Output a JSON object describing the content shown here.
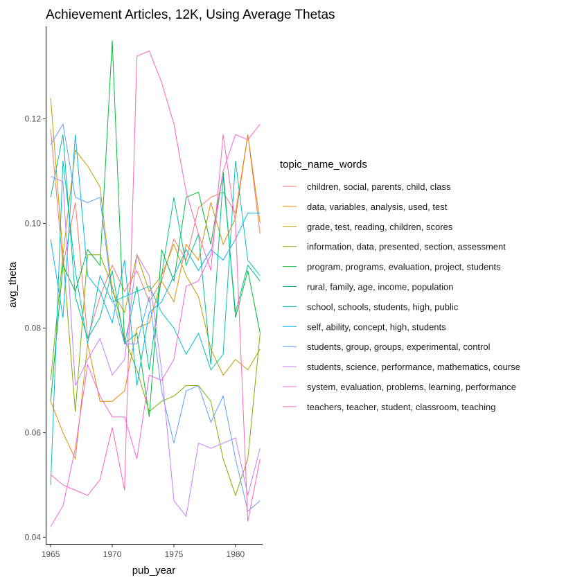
{
  "chart_data": {
    "type": "line",
    "title": "Achievement Articles, 12K, Using Average Thetas",
    "xlabel": "pub_year",
    "ylabel": "avg_theta",
    "xlim": [
      1964.6,
      1982.2
    ],
    "ylim": [
      0.0386,
      0.1377
    ],
    "x_ticks": [
      1965,
      1970,
      1975,
      1980
    ],
    "y_ticks": [
      0.04,
      0.06,
      0.08,
      0.1,
      0.12
    ],
    "y_tick_labels": [
      "0.04",
      "0.06",
      "0.08",
      "0.10",
      "0.12"
    ],
    "grid": false,
    "legend_position": "right",
    "legend_title": "topic_name_words",
    "x": [
      1965,
      1966,
      1967,
      1968,
      1969,
      1970,
      1971,
      1972,
      1973,
      1974,
      1975,
      1976,
      1977,
      1978,
      1979,
      1980,
      1981,
      1982
    ],
    "series": [
      {
        "name": "children, social, parents, child, class",
        "color": "#F8766D",
        "values": [
          0.118,
          0.092,
          0.104,
          0.078,
          0.086,
          0.092,
          0.087,
          0.091,
          0.085,
          0.089,
          0.097,
          0.093,
          0.103,
          0.105,
          0.106,
          0.102,
          0.117,
          0.098
        ]
      },
      {
        "name": "data, variables, analysis, used, test",
        "color": "#DE8C00",
        "values": [
          0.066,
          0.06,
          0.055,
          0.077,
          0.066,
          0.066,
          0.068,
          0.08,
          0.081,
          0.089,
          0.085,
          0.096,
          0.093,
          0.104,
          0.096,
          0.101,
          0.117,
          0.1
        ]
      },
      {
        "name": "grade, test, reading, children, scores",
        "color": "#B79F00",
        "values": [
          0.124,
          0.094,
          0.114,
          0.111,
          0.107,
          0.087,
          0.083,
          0.094,
          0.087,
          0.09,
          0.096,
          0.09,
          0.086,
          0.076,
          0.071,
          0.074,
          0.072,
          0.076
        ]
      },
      {
        "name": "information, data, presented, section, assessment",
        "color": "#7CAE00",
        "values": [
          0.07,
          0.094,
          0.064,
          0.094,
          0.094,
          0.088,
          0.078,
          0.072,
          0.064,
          0.066,
          0.067,
          0.069,
          0.069,
          0.066,
          0.055,
          0.048,
          0.055,
          0.079
        ]
      },
      {
        "name": "program, programs, evaluation, project, students",
        "color": "#00BA38",
        "values": [
          0.066,
          0.092,
          0.087,
          0.095,
          0.092,
          0.135,
          0.077,
          0.079,
          0.063,
          0.095,
          0.089,
          0.105,
          0.106,
          0.096,
          0.11,
          0.082,
          0.091,
          0.079
        ]
      },
      {
        "name": "rural, family, age, income, population",
        "color": "#00C08B",
        "values": [
          0.105,
          0.117,
          0.086,
          0.078,
          0.082,
          0.091,
          0.077,
          0.088,
          0.072,
          0.09,
          0.105,
          0.092,
          0.098,
          0.073,
          0.109,
          0.083,
          0.092,
          0.089
        ]
      },
      {
        "name": "school, schools, students, high, public",
        "color": "#00BFC4",
        "values": [
          0.05,
          0.112,
          0.091,
          0.077,
          0.09,
          0.085,
          0.086,
          0.087,
          0.088,
          0.083,
          0.08,
          0.075,
          0.079,
          0.072,
          0.075,
          0.112,
          0.093,
          0.09
        ]
      },
      {
        "name": "self, ability, concept, high, students",
        "color": "#00B4F0",
        "values": [
          0.097,
          0.082,
          0.117,
          0.09,
          0.087,
          0.081,
          0.093,
          0.069,
          0.083,
          0.085,
          0.09,
          0.095,
          0.091,
          0.095,
          0.093,
          0.097,
          0.102,
          0.102
        ]
      },
      {
        "name": "students, group, groups, experimental, control",
        "color": "#619CFF",
        "values": [
          0.115,
          0.119,
          0.105,
          0.104,
          0.105,
          0.086,
          0.077,
          0.077,
          0.086,
          0.068,
          0.058,
          0.068,
          0.069,
          0.062,
          0.067,
          0.055,
          0.045,
          0.047
        ]
      },
      {
        "name": "students, science, performance, mathematics, course",
        "color": "#C77CFF",
        "values": [
          0.109,
          0.108,
          0.069,
          0.074,
          0.078,
          0.071,
          0.074,
          0.094,
          0.09,
          0.072,
          0.047,
          0.044,
          0.058,
          0.057,
          0.058,
          0.059,
          0.048,
          0.057
        ]
      },
      {
        "name": "system, evaluation, problems, learning, performance",
        "color": "#F564E3",
        "values": [
          0.042,
          0.046,
          0.057,
          0.073,
          0.067,
          0.063,
          0.063,
          0.055,
          0.071,
          0.07,
          0.074,
          0.088,
          0.089,
          0.094,
          0.11,
          0.117,
          0.116,
          0.119
        ]
      },
      {
        "name": "teachers, teacher, student, classroom, teaching",
        "color": "#FF64B0",
        "values": [
          0.052,
          0.05,
          0.049,
          0.048,
          0.051,
          0.061,
          0.049,
          0.132,
          0.133,
          0.127,
          0.119,
          0.106,
          0.098,
          0.091,
          0.117,
          0.1,
          0.043,
          0.055
        ]
      }
    ]
  }
}
